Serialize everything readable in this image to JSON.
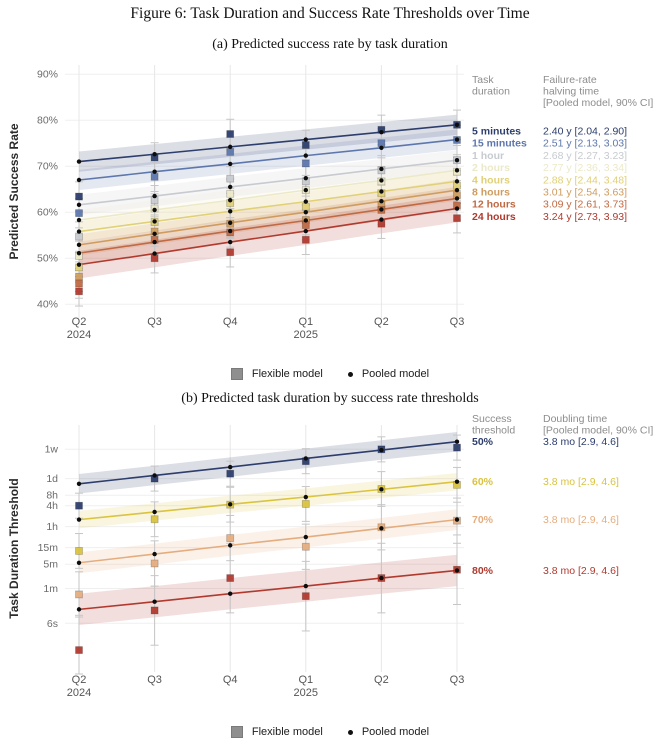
{
  "figure": {
    "title": "Figure 6: Task Duration and Success Rate Thresholds over Time"
  },
  "model_legend": {
    "flexible": "Flexible model",
    "pooled": "Pooled model"
  },
  "chart_data": [
    {
      "id": "a",
      "type": "line",
      "title": "(a) Predicted success rate by task duration",
      "ylabel": "Predicted Success Rate",
      "y_unit": "percent success rate",
      "grid": true,
      "legend_position": "right",
      "x_labels": [
        {
          "label": "Q2",
          "sub": "2024"
        },
        {
          "label": "Q3",
          "sub": ""
        },
        {
          "label": "Q4",
          "sub": ""
        },
        {
          "label": "Q1",
          "sub": "2025"
        },
        {
          "label": "Q2",
          "sub": ""
        },
        {
          "label": "Q3",
          "sub": ""
        }
      ],
      "y_ticks": [
        {
          "v": 90,
          "label": "90%"
        },
        {
          "v": 80,
          "label": "80%"
        },
        {
          "v": 70,
          "label": "70%"
        },
        {
          "v": 60,
          "label": "60%"
        },
        {
          "v": 50,
          "label": "50%"
        },
        {
          "v": 40,
          "label": "40%"
        }
      ],
      "ylim": [
        37,
        92
      ],
      "legend": {
        "col1_header": "Task\nduration",
        "col2_header": "Failure-rate\nhalving time\n[Pooled model, 90% CI]"
      },
      "series": [
        {
          "name": "5 minutes",
          "value_text": "2.40 y [2.04, 2.90]",
          "color": "#2d3e6d",
          "pooled": [
            71.0,
            72.6,
            74.2,
            75.8,
            77.4,
            79.0
          ],
          "flexible": [
            63.4,
            71.9,
            77.0,
            74.6,
            77.9,
            79.0
          ],
          "band": 2.2,
          "whisker": 3.2
        },
        {
          "name": "15 minutes",
          "value_text": "2.51 y [2.13, 3.03]",
          "color": "#5d77ad",
          "pooled": [
            67.0,
            68.8,
            70.5,
            72.3,
            74.0,
            75.8
          ],
          "flexible": [
            59.8,
            67.7,
            73.1,
            70.6,
            75.0,
            75.7
          ],
          "band": 2.2,
          "whisker": 3.2
        },
        {
          "name": "1 hour",
          "value_text": "2.68 y [2.27, 3.23]",
          "color": "#c7cacf",
          "pooled": [
            61.6,
            63.5,
            65.5,
            67.4,
            69.4,
            71.3
          ],
          "flexible": [
            54.7,
            62.6,
            67.3,
            66.7,
            69.1,
            71.3
          ],
          "band": 2.2,
          "whisker": 3.2
        },
        {
          "name": "2 hours",
          "value_text": "2.77 y [2.36, 3.34]",
          "color": "#ece9c8",
          "pooled": [
            58.3,
            60.5,
            62.6,
            64.8,
            66.9,
            69.1
          ],
          "flexible": [
            50.5,
            60.8,
            64.0,
            64.8,
            66.7,
            68.8
          ],
          "band": 2.2,
          "whisker": 3.2
        },
        {
          "name": "4 hours",
          "value_text": "2.88 y [2.44, 3.48]",
          "color": "#e0d077",
          "pooled": [
            55.8,
            58.0,
            60.2,
            62.3,
            64.5,
            66.7
          ],
          "flexible": [
            48.0,
            57.9,
            62.0,
            61.2,
            64.1,
            65.8
          ],
          "band": 2.2,
          "whisker": 3.2
        },
        {
          "name": "8 hours",
          "value_text": "3.01 y [2.54, 3.63]",
          "color": "#cf9c5e",
          "pooled": [
            52.9,
            55.3,
            57.7,
            60.0,
            62.4,
            64.8
          ],
          "flexible": [
            46.0,
            55.8,
            57.5,
            58.3,
            61.6,
            63.7
          ],
          "band": 2.3,
          "whisker": 3.2
        },
        {
          "name": "12 hours",
          "value_text": "3.09 y [2.61, 3.73]",
          "color": "#c06a44",
          "pooled": [
            51.1,
            53.5,
            55.9,
            58.2,
            60.6,
            63.0
          ],
          "flexible": [
            44.5,
            54.0,
            55.6,
            57.2,
            60.5,
            61.5
          ],
          "band": 2.5,
          "whisker": 3.2
        },
        {
          "name": "24 hours",
          "value_text": "3.24 y [2.73, 3.93]",
          "color": "#b13a2f",
          "pooled": [
            48.6,
            51.0,
            53.5,
            55.9,
            58.4,
            60.8
          ],
          "flexible": [
            42.8,
            50.0,
            51.3,
            54.0,
            57.5,
            58.7
          ],
          "band": 3.0,
          "whisker": 3.2
        }
      ]
    },
    {
      "id": "b",
      "type": "line",
      "title": "(b) Predicted task duration by success rate thresholds",
      "ylabel": "Task Duration Threshold",
      "y_unit": "log10(minutes), log-scale durations",
      "grid": true,
      "legend_position": "right",
      "x_labels": [
        {
          "label": "Q2",
          "sub": "2024"
        },
        {
          "label": "Q3",
          "sub": ""
        },
        {
          "label": "Q4",
          "sub": ""
        },
        {
          "label": "Q1",
          "sub": "2025"
        },
        {
          "label": "Q2",
          "sub": ""
        },
        {
          "label": "Q3",
          "sub": ""
        }
      ],
      "y_ticks": [
        {
          "v": 4.003,
          "label": "1w"
        },
        {
          "v": 3.158,
          "label": "1d"
        },
        {
          "v": 2.681,
          "label": "8h"
        },
        {
          "v": 2.38,
          "label": "4h"
        },
        {
          "v": 1.778,
          "label": "1h"
        },
        {
          "v": 1.176,
          "label": "15m"
        },
        {
          "v": 0.699,
          "label": "5m"
        },
        {
          "v": 0.0,
          "label": "1m"
        },
        {
          "v": -1.0,
          "label": "6s"
        }
      ],
      "ylim": [
        -2.4,
        4.7
      ],
      "legend": {
        "col1_header": "Success\nthreshold",
        "col2_header": "Doubling time\n[Pooled model, 90% CI]"
      },
      "series": [
        {
          "name": "50%",
          "value_text": "3.8 mo [2.9, 4.6]",
          "color": "#2d3e6d",
          "pooled": [
            3.01,
            3.25,
            3.49,
            3.74,
            3.98,
            4.22
          ],
          "flexible": [
            2.38,
            3.16,
            3.3,
            3.66,
            4.0,
            4.05
          ],
          "band": 0.28,
          "whisker": 0.36
        },
        {
          "name": "60%",
          "value_text": "3.8 mo [2.9, 4.6]",
          "color": "#d9c33f",
          "pooled": [
            1.98,
            2.2,
            2.42,
            2.63,
            2.85,
            3.07
          ],
          "flexible": [
            1.08,
            1.99,
            2.41,
            2.43,
            2.86,
            2.98
          ],
          "band": 0.25,
          "whisker": 0.5
        },
        {
          "name": "70%",
          "value_text": "3.8 mo [2.9, 4.6]",
          "color": "#e5ad7e",
          "pooled": [
            0.74,
            0.99,
            1.24,
            1.48,
            1.73,
            1.98
          ],
          "flexible": [
            -0.17,
            0.72,
            1.45,
            1.2,
            1.76,
            1.95
          ],
          "band": 0.3,
          "whisker": 0.65
        },
        {
          "name": "80%",
          "value_text": "3.8 mo [2.9, 4.6]",
          "color": "#b13a2f",
          "pooled": [
            -0.6,
            -0.38,
            -0.15,
            0.07,
            0.3,
            0.52
          ],
          "flexible": [
            -1.77,
            -0.63,
            0.3,
            -0.22,
            0.3,
            0.54
          ],
          "band": 0.45,
          "whisker": 1.0
        }
      ]
    }
  ]
}
